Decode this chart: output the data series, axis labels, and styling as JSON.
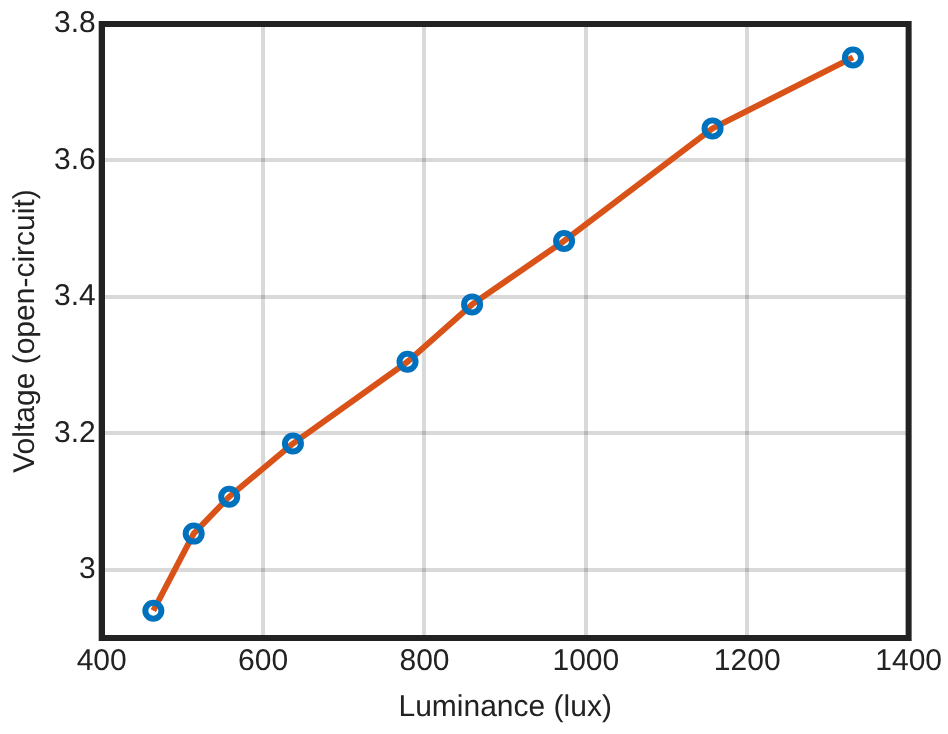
{
  "chart_data": {
    "type": "line",
    "xlabel": "Luminance (lux)",
    "ylabel": "Voltage (open-circuit)",
    "x": [
      464,
      514,
      558,
      637,
      779,
      859,
      973,
      1157,
      1331
    ],
    "series": [
      {
        "type": "line",
        "color": "#d95319",
        "marker": "none",
        "values": [
          2.94,
          3.053,
          3.107,
          3.185,
          3.305,
          3.389,
          3.482,
          3.647,
          3.751
        ]
      },
      {
        "type": "scatter",
        "color": "#0072bd",
        "marker": "circle",
        "values": [
          2.94,
          3.053,
          3.107,
          3.185,
          3.305,
          3.389,
          3.482,
          3.647,
          3.751
        ]
      }
    ],
    "xlim": [
      400,
      1400
    ],
    "xticks": [
      400,
      600,
      800,
      1000,
      1200,
      1400
    ],
    "ylim": [
      2.9,
      3.8
    ],
    "yticks": [
      3,
      3.2,
      3.4,
      3.6,
      3.8
    ],
    "grid": true,
    "legend": false,
    "line_style": "solid"
  }
}
